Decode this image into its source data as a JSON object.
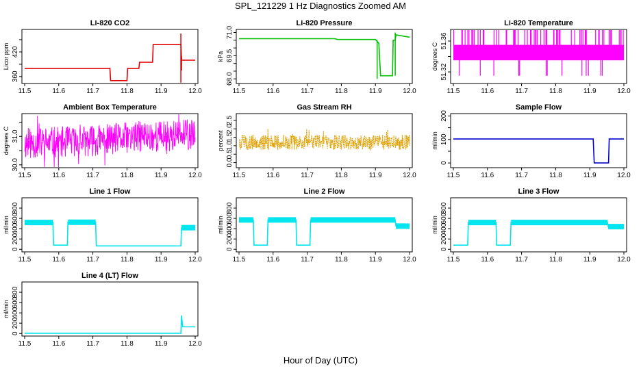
{
  "figure": {
    "title": "SPL_121229  1 Hz Diagnostics Zoomed AM",
    "xlabel": "Hour of Day (UTC)"
  },
  "colors": {
    "red": "#e00000",
    "green": "#00c000",
    "magenta": "#ff00ff",
    "orange": "#e0a000",
    "blue": "#0000cc",
    "cyan": "#00e5ee"
  },
  "chart_data": [
    {
      "type": "line",
      "title": "Li-820 CO2",
      "ylabel": "Licor ppm",
      "color": "red",
      "xlim": [
        11.5,
        12.0
      ],
      "ylim": [
        343,
        475
      ],
      "yticks": [
        360,
        390,
        420,
        450
      ],
      "ytick_labels": [
        "360",
        "",
        "420",
        ""
      ],
      "x": [
        11.5,
        11.75,
        11.752,
        11.8,
        11.802,
        11.835,
        11.837,
        11.875,
        11.877,
        11.958,
        11.96,
        12.0
      ],
      "y": [
        380,
        380,
        350,
        350,
        380,
        380,
        395,
        395,
        438,
        438,
        400,
        400
      ],
      "spikes": [
        [
          11.958,
          345,
          465
        ],
        [
          11.96,
          375,
          410
        ]
      ]
    },
    {
      "type": "line",
      "title": "Li-820 Pressure",
      "ylabel": "kPa",
      "color": "green",
      "xlim": [
        11.5,
        12.0
      ],
      "ylim": [
        67.7,
        71.2
      ],
      "yticks": [
        68.0,
        68.5,
        69.0,
        69.5,
        70.0,
        70.5,
        71.0
      ],
      "ytick_labels": [
        "68.0",
        "",
        "",
        "69.5",
        "",
        "",
        "71.0"
      ],
      "x": [
        11.5,
        11.78,
        11.79,
        11.9,
        11.91,
        11.915,
        11.95,
        11.952,
        11.958,
        11.96,
        12.0
      ],
      "y": [
        70.6,
        70.6,
        70.55,
        70.55,
        70.3,
        68.2,
        68.2,
        70.5,
        70.5,
        70.85,
        70.7
      ],
      "spikes": [
        [
          11.905,
          68.0,
          70.5
        ],
        [
          11.958,
          68.2,
          71.0
        ]
      ]
    },
    {
      "type": "band",
      "title": "Li-820 Temperature",
      "ylabel": "degrees C",
      "color": "magenta",
      "xlim": [
        11.5,
        12.0
      ],
      "ylim": [
        51.305,
        51.375
      ],
      "yticks": [
        51.32,
        51.34,
        51.36
      ],
      "ytick_labels": [
        "51.32",
        "",
        "51.36"
      ],
      "band_x": [
        11.5,
        12.0
      ],
      "band_y": [
        51.335,
        51.355
      ],
      "upper_spikes": [
        51.375,
        66
      ],
      "lower_spikes": [
        51.315,
        13
      ],
      "upper_seed": 7,
      "lower_seed": 3
    },
    {
      "type": "noise",
      "title": "Ambient Box Temperature",
      "ylabel": "degrees C",
      "color": "magenta",
      "xlim": [
        11.5,
        12.0
      ],
      "ylim": [
        29.9,
        31.8
      ],
      "yticks": [
        30.0,
        30.5,
        31.0,
        31.5
      ],
      "ytick_labels": [
        "30.0",
        "",
        "31.0",
        ""
      ],
      "center": [
        [
          11.5,
          30.75
        ],
        [
          11.7,
          30.85
        ],
        [
          11.85,
          31.0
        ],
        [
          12.0,
          31.05
        ]
      ],
      "amplitude": 0.55,
      "seed": 11
    },
    {
      "type": "noise",
      "title": "Gas Stream RH",
      "ylabel": "percent",
      "color": "orange",
      "xlim": [
        11.5,
        12.0
      ],
      "ylim": [
        -0.3,
        2.9
      ],
      "yticks": [
        0.0,
        0.5,
        1.0,
        1.5,
        2.0,
        2.5
      ],
      "ytick_labels": [
        "0.0",
        "0.5",
        "1.0",
        "1.5",
        "2.0",
        "2.5"
      ],
      "center": [
        [
          11.5,
          1.2
        ],
        [
          12.0,
          1.2
        ]
      ],
      "amplitude": 0.45,
      "seed": 5,
      "dotted": true
    },
    {
      "type": "line",
      "title": "Sample Flow",
      "ylabel": "ml/min",
      "color": "blue",
      "xlim": [
        11.5,
        12.0
      ],
      "ylim": [
        -20,
        210
      ],
      "yticks": [
        0,
        50,
        100,
        150,
        200
      ],
      "ytick_labels": [
        "0",
        "",
        "100",
        "",
        "200"
      ],
      "x": [
        11.5,
        11.91,
        11.913,
        11.955,
        11.957,
        12.0
      ],
      "y": [
        102,
        102,
        0,
        0,
        102,
        102
      ]
    },
    {
      "type": "line",
      "title": "Line 1 Flow",
      "ylabel": "ml/min",
      "color": "cyan",
      "xlim": [
        11.5,
        12.0
      ],
      "ylim": [
        -50,
        1000
      ],
      "yticks": [
        0,
        200,
        400,
        600,
        800
      ],
      "ytick_labels": [
        "0",
        "200",
        "400",
        "600",
        "800"
      ],
      "x": [
        11.5,
        11.583,
        11.585,
        11.625,
        11.627,
        11.708,
        11.71,
        11.958,
        11.96,
        12.0
      ],
      "y": [
        520,
        520,
        80,
        80,
        525,
        525,
        65,
        65,
        420,
        420
      ],
      "thick_segments": [
        [
          11.5,
          11.583
        ],
        [
          11.627,
          11.708
        ],
        [
          11.96,
          12.0
        ]
      ]
    },
    {
      "type": "line",
      "title": "Line 2 Flow",
      "ylabel": "ml/min",
      "color": "cyan",
      "xlim": [
        11.5,
        12.0
      ],
      "ylim": [
        -50,
        1000
      ],
      "yticks": [
        0,
        200,
        400,
        600,
        800
      ],
      "ytick_labels": [
        "0",
        "200",
        "400",
        "600",
        "800"
      ],
      "x": [
        11.5,
        11.542,
        11.544,
        11.583,
        11.585,
        11.667,
        11.669,
        11.708,
        11.71,
        11.958,
        11.96,
        12.0
      ],
      "y": [
        570,
        570,
        80,
        80,
        570,
        570,
        80,
        80,
        570,
        570,
        450,
        450
      ],
      "thick_segments": [
        [
          11.5,
          11.542
        ],
        [
          11.585,
          11.667
        ],
        [
          11.71,
          11.958
        ],
        [
          11.96,
          12.0
        ]
      ]
    },
    {
      "type": "line",
      "title": "Line 3 Flow",
      "ylabel": "ml/min",
      "color": "cyan",
      "xlim": [
        11.5,
        12.0
      ],
      "ylim": [
        -50,
        1000
      ],
      "yticks": [
        0,
        200,
        400,
        600,
        800
      ],
      "ytick_labels": [
        "0",
        "200",
        "400",
        "600",
        "800"
      ],
      "x": [
        11.5,
        11.542,
        11.544,
        11.625,
        11.627,
        11.667,
        11.669,
        11.952,
        11.954,
        12.0
      ],
      "y": [
        80,
        80,
        520,
        520,
        80,
        80,
        520,
        520,
        440,
        440
      ],
      "thick_segments": [
        [
          11.544,
          11.625
        ],
        [
          11.669,
          11.952
        ],
        [
          11.954,
          12.0
        ]
      ]
    },
    {
      "type": "line",
      "title": "Line 4 (LT) Flow",
      "ylabel": "ml/min",
      "color": "cyan",
      "xlim": [
        11.5,
        12.0
      ],
      "ylim": [
        -50,
        1000
      ],
      "yticks": [
        0,
        200,
        400,
        600,
        800
      ],
      "ytick_labels": [
        "0",
        "200",
        "400",
        "600",
        "800"
      ],
      "x": [
        11.5,
        11.958,
        11.96,
        11.963,
        12.0
      ],
      "y": [
        5,
        5,
        350,
        130,
        130
      ]
    }
  ],
  "xticks": [
    11.5,
    11.6,
    11.7,
    11.8,
    11.9,
    12.0
  ],
  "xtick_labels": [
    "11.5",
    "11.6",
    "11.7",
    "11.8",
    "11.9",
    "12.0"
  ]
}
